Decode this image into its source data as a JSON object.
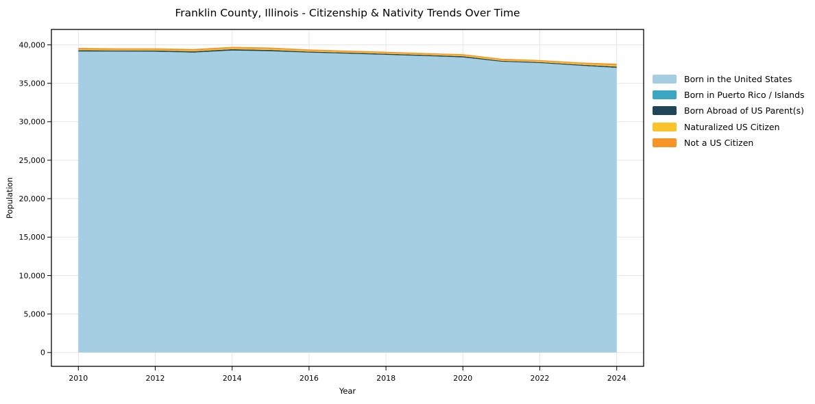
{
  "chart_data": {
    "type": "area",
    "stacked": true,
    "title": "Franklin County, Illinois - Citizenship & Nativity Trends Over Time",
    "xlabel": "Year",
    "ylabel": "Population",
    "x": [
      2010,
      2011,
      2012,
      2013,
      2014,
      2015,
      2016,
      2017,
      2018,
      2019,
      2020,
      2021,
      2022,
      2023,
      2024
    ],
    "series": [
      {
        "name": "Born in the United States",
        "color": "#a6cee3",
        "values": [
          39110,
          39100,
          39090,
          38970,
          39240,
          39150,
          38970,
          38830,
          38680,
          38530,
          38350,
          37790,
          37610,
          37280,
          36980
        ]
      },
      {
        "name": "Born in Puerto Rico / Islands",
        "color": "#3ba6c1",
        "values": [
          30,
          25,
          30,
          35,
          30,
          25,
          20,
          25,
          30,
          25,
          30,
          25,
          30,
          35,
          40
        ]
      },
      {
        "name": "Born Abroad of US Parent(s)",
        "color": "#1f4557",
        "values": [
          150,
          140,
          145,
          150,
          160,
          155,
          130,
          125,
          130,
          120,
          140,
          120,
          115,
          130,
          150
        ]
      },
      {
        "name": "Naturalized US Citizen",
        "color": "#fbc32b",
        "values": [
          110,
          100,
          105,
          110,
          120,
          130,
          110,
          105,
          110,
          105,
          120,
          105,
          110,
          125,
          145
        ]
      },
      {
        "name": "Not a US Citizen",
        "color": "#f79428",
        "values": [
          200,
          175,
          170,
          185,
          180,
          180,
          160,
          155,
          150,
          150,
          150,
          150,
          145,
          150,
          225
        ]
      }
    ],
    "xlim": [
      2009.3,
      2024.7
    ],
    "ylim": [
      -1800,
      42000
    ],
    "xticks": [
      2010,
      2012,
      2014,
      2016,
      2018,
      2020,
      2022,
      2024
    ],
    "yticks": [
      0,
      5000,
      10000,
      15000,
      20000,
      25000,
      30000,
      35000,
      40000
    ],
    "grid": true,
    "legend_position": "right"
  },
  "colors": {
    "background": "#ffffff",
    "grid": "#e6e6e6",
    "spine": "#000000",
    "text": "#000000"
  }
}
